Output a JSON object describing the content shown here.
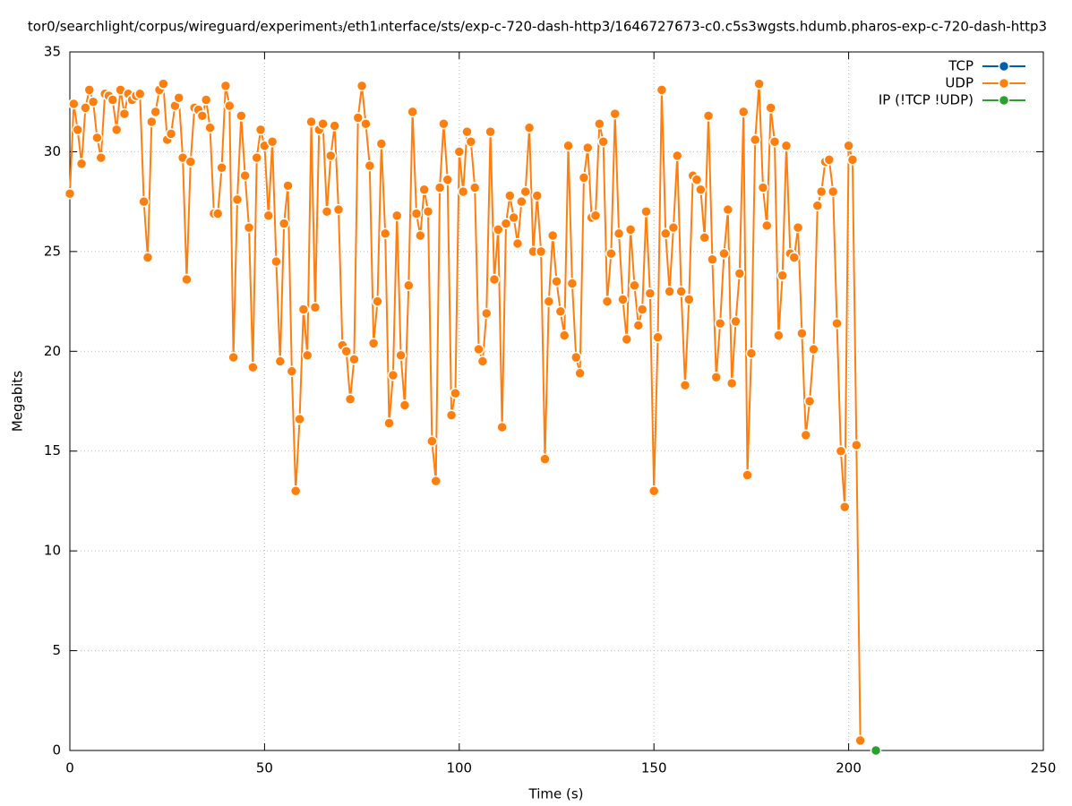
{
  "chart_data": {
    "type": "line",
    "title": "tor0/searchlight/corpus/wireguard/experiment₃/eth1ᵢnterface/sts/exp-c-720-dash-http3/1646727673-c0.c5s3wgsts.hdumb.pharos-exp-c-720-dash-http3",
    "xlabel": "Time (s)",
    "ylabel": "Megabits",
    "xlim": [
      0,
      250
    ],
    "xticks": [
      0,
      50,
      100,
      150,
      200,
      250
    ],
    "ylim": [
      0,
      35
    ],
    "yticks": [
      0,
      5,
      10,
      15,
      20,
      25,
      30,
      35
    ],
    "grid": true,
    "legend": "top right",
    "series": [
      {
        "name": "TCP",
        "color": "#0060ad",
        "x": [],
        "values": []
      },
      {
        "name": "UDP",
        "color": "#ff7f0e",
        "x": [
          0,
          1,
          2,
          3,
          4,
          5,
          6,
          7,
          8,
          9,
          10,
          11,
          12,
          13,
          14,
          15,
          16,
          17,
          18,
          19,
          20,
          21,
          22,
          23,
          24,
          25,
          26,
          27,
          28,
          29,
          30,
          31,
          32,
          33,
          34,
          35,
          36,
          37,
          38,
          39,
          40,
          41,
          42,
          43,
          44,
          45,
          46,
          47,
          48,
          49,
          50,
          51,
          52,
          53,
          54,
          55,
          56,
          57,
          58,
          59,
          60,
          61,
          62,
          63,
          64,
          65,
          66,
          67,
          68,
          69,
          70,
          71,
          72,
          73,
          74,
          75,
          76,
          77,
          78,
          79,
          80,
          81,
          82,
          83,
          84,
          85,
          86,
          87,
          88,
          89,
          90,
          91,
          92,
          93,
          94,
          95,
          96,
          97,
          98,
          99,
          100,
          101,
          102,
          103,
          104,
          105,
          106,
          107,
          108,
          109,
          110,
          111,
          112,
          113,
          114,
          115,
          116,
          117,
          118,
          119,
          120,
          121,
          122,
          123,
          124,
          125,
          126,
          127,
          128,
          129,
          130,
          131,
          132,
          133,
          134,
          135,
          136,
          137,
          138,
          139,
          140,
          141,
          142,
          143,
          144,
          145,
          146,
          147,
          148,
          149,
          150,
          151,
          152,
          153,
          154,
          155,
          156,
          157,
          158,
          159,
          160,
          161,
          162,
          163,
          164,
          165,
          166,
          167,
          168,
          169,
          170,
          171,
          172,
          173,
          174,
          175,
          176,
          177,
          178,
          179,
          180,
          181,
          182,
          183,
          184,
          185,
          186,
          187,
          188,
          189,
          190,
          191,
          192,
          193,
          194,
          195,
          196,
          197,
          198,
          199,
          200,
          201,
          202,
          203
        ],
        "values": [
          27.9,
          32.4,
          31.1,
          29.4,
          32.2,
          33.1,
          32.5,
          30.7,
          29.7,
          32.9,
          32.8,
          32.6,
          31.1,
          33.1,
          31.9,
          32.9,
          32.6,
          32.8,
          32.9,
          27.5,
          24.7,
          31.5,
          32.0,
          33.1,
          33.4,
          30.6,
          30.9,
          32.3,
          32.7,
          29.7,
          23.6,
          29.5,
          32.2,
          32.1,
          31.8,
          32.6,
          31.2,
          26.9,
          26.9,
          29.2,
          33.3,
          32.3,
          19.7,
          27.6,
          31.8,
          28.8,
          26.2,
          19.2,
          29.7,
          31.1,
          30.3,
          26.8,
          30.5,
          24.5,
          19.5,
          26.4,
          28.3,
          19.0,
          13.0,
          16.6,
          22.1,
          19.8,
          31.5,
          22.2,
          31.1,
          31.4,
          27.0,
          29.8,
          31.3,
          27.1,
          20.3,
          20.0,
          17.6,
          19.6,
          31.7,
          33.3,
          31.4,
          29.3,
          20.4,
          22.5,
          30.4,
          25.9,
          16.4,
          18.8,
          26.8,
          19.8,
          17.3,
          23.3,
          32.0,
          26.9,
          25.8,
          28.1,
          27.0,
          15.5,
          13.5,
          28.2,
          31.4,
          28.6,
          16.8,
          17.9,
          30.0,
          28.0,
          31.0,
          30.5,
          28.2,
          20.1,
          19.5,
          21.9,
          31.0,
          23.6,
          26.1,
          16.2,
          26.4,
          27.8,
          26.7,
          25.4,
          27.5,
          28.0,
          31.2,
          25.0,
          27.8,
          25.0,
          14.6,
          22.5,
          25.8,
          23.5,
          22.0,
          20.8,
          30.3,
          23.4,
          19.7,
          18.9,
          28.7,
          30.2,
          26.7,
          26.8,
          31.4,
          30.5,
          22.5,
          24.9,
          31.9,
          25.9,
          22.6,
          20.6,
          26.1,
          23.3,
          21.3,
          22.1,
          27.0,
          22.9,
          13.0,
          20.7,
          33.1,
          25.9,
          23.0,
          26.2,
          29.8,
          23.0,
          18.3,
          22.6,
          28.8,
          28.6,
          28.1,
          25.7,
          31.8,
          24.6,
          18.7,
          21.4,
          24.9,
          27.1,
          18.4,
          21.5,
          23.9,
          32.0,
          13.8,
          19.9,
          30.6,
          33.4,
          28.2,
          26.3,
          32.2,
          30.5,
          20.8,
          23.8,
          30.3,
          24.9,
          24.7,
          26.2,
          20.9,
          15.8,
          17.5,
          20.1,
          27.3,
          28.0,
          29.5,
          29.6,
          28.0,
          21.4,
          15.0,
          12.2,
          30.3,
          29.6,
          15.3,
          0.5
        ]
      },
      {
        "name": "IP (!TCP  !UDP)",
        "color": "#2ca02c",
        "x": [
          207
        ],
        "values": [
          0
        ]
      }
    ]
  }
}
